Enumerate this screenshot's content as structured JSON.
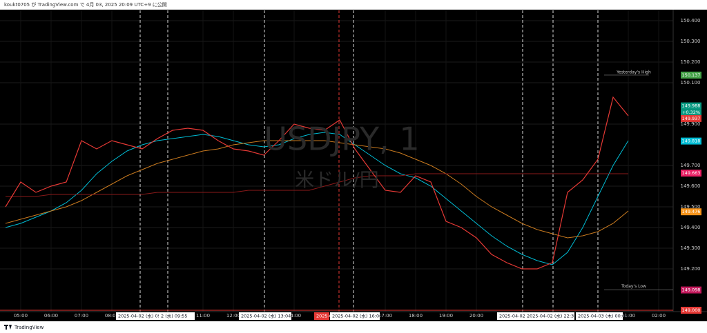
{
  "chart_data": {
    "type": "line",
    "header": "koukt0705 が TradingView.com で 4月 03, 2025 20:09 UTC+9 に公開",
    "watermark": "USDJPY, 1",
    "watermark_subtitle": "米ドル/円",
    "footer": "TradingView",
    "categories": [
      null,
      "05:00",
      null,
      "06:00",
      null,
      "07:00",
      null,
      "08:00",
      null,
      null,
      null,
      null,
      null,
      "11:00",
      null,
      "12:00",
      null,
      null,
      null,
      "14:00",
      null,
      null,
      null,
      null,
      null,
      "17:00",
      null,
      "18:00",
      null,
      "19:00",
      null,
      "20:00",
      null,
      null,
      null,
      null,
      null,
      null,
      null,
      null,
      null,
      "01:00",
      null,
      "02:00"
    ],
    "series": [
      {
        "color": "#00bcd4",
        "values": [
          149.4,
          149.42,
          149.45,
          149.48,
          149.52,
          149.58,
          149.66,
          149.72,
          149.77,
          149.8,
          149.82,
          149.83,
          149.84,
          149.85,
          149.84,
          149.82,
          149.8,
          149.79,
          149.8,
          149.83,
          149.85,
          149.86,
          149.85,
          149.8,
          149.75,
          149.7,
          149.66,
          149.64,
          149.6,
          149.54,
          149.48,
          149.42,
          149.36,
          149.31,
          149.27,
          149.24,
          149.22,
          149.28,
          149.4,
          149.55,
          149.7,
          149.82,
          null,
          null
        ]
      },
      {
        "color": "#c97a1f",
        "values": [
          149.42,
          149.44,
          149.46,
          149.48,
          149.5,
          149.53,
          149.57,
          149.61,
          149.65,
          149.68,
          149.71,
          149.73,
          149.75,
          149.77,
          149.78,
          149.8,
          149.81,
          149.82,
          149.82,
          149.82,
          149.82,
          149.82,
          149.81,
          149.8,
          149.79,
          149.78,
          149.76,
          149.73,
          149.7,
          149.66,
          149.61,
          149.55,
          149.5,
          149.46,
          149.42,
          149.39,
          149.37,
          149.35,
          149.36,
          149.38,
          149.42,
          149.48,
          null,
          null
        ]
      },
      {
        "color": "#8b1a1a",
        "values": [
          149.55,
          149.55,
          149.55,
          149.56,
          149.56,
          149.56,
          149.56,
          149.56,
          149.56,
          149.56,
          149.57,
          149.57,
          149.57,
          149.57,
          149.57,
          149.57,
          149.58,
          149.58,
          149.58,
          149.58,
          149.58,
          149.6,
          149.62,
          149.64,
          149.65,
          149.65,
          149.65,
          149.66,
          149.66,
          149.66,
          149.66,
          149.66,
          149.66,
          149.66,
          149.66,
          149.66,
          149.66,
          149.66,
          149.66,
          149.66,
          149.66,
          149.66,
          null,
          null
        ]
      },
      {
        "color": "#e53935",
        "values": [
          149.5,
          149.62,
          149.57,
          149.6,
          149.62,
          149.82,
          149.78,
          149.82,
          149.8,
          149.78,
          149.83,
          149.87,
          149.88,
          149.87,
          149.82,
          149.78,
          149.77,
          149.75,
          149.82,
          149.9,
          149.88,
          149.87,
          149.92,
          149.78,
          149.68,
          149.58,
          149.57,
          149.65,
          149.62,
          149.43,
          149.4,
          149.35,
          149.27,
          149.23,
          149.2,
          149.2,
          149.23,
          149.57,
          149.63,
          149.73,
          150.03,
          149.94,
          null,
          null
        ]
      }
    ],
    "ylim": [
      148.99,
      150.45
    ],
    "yticks": [
      {
        "value": 150.4,
        "label": "150.400"
      },
      {
        "value": 150.3,
        "label": "150.300"
      },
      {
        "value": 150.2,
        "label": "150.200"
      },
      {
        "value": 150.1,
        "label": "150.100"
      },
      {
        "value": 149.9,
        "label": "149.900"
      },
      {
        "value": 149.7,
        "label": "149.700"
      },
      {
        "value": 149.6,
        "label": "149.600"
      },
      {
        "value": 149.5,
        "label": "149.500"
      },
      {
        "value": 149.4,
        "label": "149.400"
      },
      {
        "value": 149.3,
        "label": "149.300"
      },
      {
        "value": 149.2,
        "label": "149.200"
      }
    ],
    "grid": true,
    "price_labels": [
      {
        "value": 150.137,
        "label": "150.137",
        "color": "#43a047"
      },
      {
        "value": 149.988,
        "label": "149.988",
        "color": "#089981"
      },
      {
        "value": 149.937,
        "label": "149.937",
        "color": "#e53935"
      },
      {
        "value": 149.818,
        "label": "149.818",
        "color": "#00bcd4"
      },
      {
        "value": 149.663,
        "label": "149.663",
        "color": "#e91e63"
      },
      {
        "value": 149.476,
        "label": "149.476",
        "color": "#f7931a"
      },
      {
        "value": 149.098,
        "label": "149.098",
        "color": "#c2185b"
      },
      {
        "value": 149.0,
        "label": "149.000",
        "color": "#e53935"
      }
    ],
    "change_label": "+0.32%",
    "level_labels": [
      "Yesterday's High",
      "Today's Low"
    ],
    "time_highlights": [
      "2025-04-02 (水)   09:00",
      "2 (水)   09:55",
      "2025-04-02 (水)   13:04",
      "2025-0",
      "2025-04-02 (水)   16:00",
      "2025-04-02 (水",
      "2025-04-02 (水)   22:3",
      "2025-04-03 (木)   00:00"
    ]
  }
}
